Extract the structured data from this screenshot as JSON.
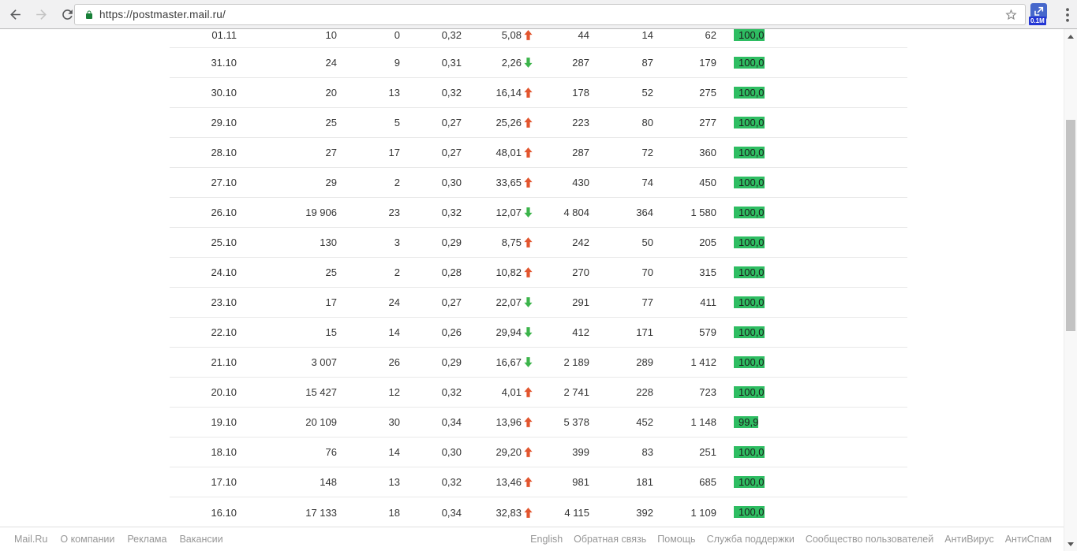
{
  "browser": {
    "url": "https://postmaster.mail.ru/",
    "extension_badge": "0.1M",
    "icons": [
      "back-icon",
      "forward-icon",
      "refresh-icon",
      "lock-icon",
      "star-icon",
      "extension-icon",
      "menu-icon"
    ]
  },
  "colors": {
    "bar_green": "#2ebd62",
    "arrow_up": "#e2552e",
    "arrow_down": "#3cb44b",
    "lock_green": "#188038"
  },
  "table": {
    "rows": [
      {
        "date": "01.11",
        "v1": "10",
        "v2": "0",
        "v3": "0,32",
        "trend": "5,08",
        "dir": "up",
        "v4": "44",
        "v5": "14",
        "v6": "62",
        "rate": "100,0"
      },
      {
        "date": "31.10",
        "v1": "24",
        "v2": "9",
        "v3": "0,31",
        "trend": "2,26",
        "dir": "down",
        "v4": "287",
        "v5": "87",
        "v6": "179",
        "rate": "100,0"
      },
      {
        "date": "30.10",
        "v1": "20",
        "v2": "13",
        "v3": "0,32",
        "trend": "16,14",
        "dir": "up",
        "v4": "178",
        "v5": "52",
        "v6": "275",
        "rate": "100,0"
      },
      {
        "date": "29.10",
        "v1": "25",
        "v2": "5",
        "v3": "0,27",
        "trend": "25,26",
        "dir": "up",
        "v4": "223",
        "v5": "80",
        "v6": "277",
        "rate": "100,0"
      },
      {
        "date": "28.10",
        "v1": "27",
        "v2": "17",
        "v3": "0,27",
        "trend": "48,01",
        "dir": "up",
        "v4": "287",
        "v5": "72",
        "v6": "360",
        "rate": "100,0"
      },
      {
        "date": "27.10",
        "v1": "29",
        "v2": "2",
        "v3": "0,30",
        "trend": "33,65",
        "dir": "up",
        "v4": "430",
        "v5": "74",
        "v6": "450",
        "rate": "100,0"
      },
      {
        "date": "26.10",
        "v1": "19 906",
        "v2": "23",
        "v3": "0,32",
        "trend": "12,07",
        "dir": "down",
        "v4": "4 804",
        "v5": "364",
        "v6": "1 580",
        "rate": "100,0"
      },
      {
        "date": "25.10",
        "v1": "130",
        "v2": "3",
        "v3": "0,29",
        "trend": "8,75",
        "dir": "up",
        "v4": "242",
        "v5": "50",
        "v6": "205",
        "rate": "100,0"
      },
      {
        "date": "24.10",
        "v1": "25",
        "v2": "2",
        "v3": "0,28",
        "trend": "10,82",
        "dir": "up",
        "v4": "270",
        "v5": "70",
        "v6": "315",
        "rate": "100,0"
      },
      {
        "date": "23.10",
        "v1": "17",
        "v2": "24",
        "v3": "0,27",
        "trend": "22,07",
        "dir": "down",
        "v4": "291",
        "v5": "77",
        "v6": "411",
        "rate": "100,0"
      },
      {
        "date": "22.10",
        "v1": "15",
        "v2": "14",
        "v3": "0,26",
        "trend": "29,94",
        "dir": "down",
        "v4": "412",
        "v5": "171",
        "v6": "579",
        "rate": "100,0"
      },
      {
        "date": "21.10",
        "v1": "3 007",
        "v2": "26",
        "v3": "0,29",
        "trend": "16,67",
        "dir": "down",
        "v4": "2 189",
        "v5": "289",
        "v6": "1 412",
        "rate": "100,0"
      },
      {
        "date": "20.10",
        "v1": "15 427",
        "v2": "12",
        "v3": "0,32",
        "trend": "4,01",
        "dir": "up",
        "v4": "2 741",
        "v5": "228",
        "v6": "723",
        "rate": "100,0"
      },
      {
        "date": "19.10",
        "v1": "20 109",
        "v2": "30",
        "v3": "0,34",
        "trend": "13,96",
        "dir": "up",
        "v4": "5 378",
        "v5": "452",
        "v6": "1 148",
        "rate": "99,9"
      },
      {
        "date": "18.10",
        "v1": "76",
        "v2": "14",
        "v3": "0,30",
        "trend": "29,20",
        "dir": "up",
        "v4": "399",
        "v5": "83",
        "v6": "251",
        "rate": "100,0"
      },
      {
        "date": "17.10",
        "v1": "148",
        "v2": "13",
        "v3": "0,32",
        "trend": "13,46",
        "dir": "up",
        "v4": "981",
        "v5": "181",
        "v6": "685",
        "rate": "100,0"
      },
      {
        "date": "16.10",
        "v1": "17 133",
        "v2": "18",
        "v3": "0,34",
        "trend": "32,83",
        "dir": "up",
        "v4": "4 115",
        "v5": "392",
        "v6": "1 109",
        "rate": "100,0"
      }
    ]
  },
  "footer": {
    "left": [
      "Mail.Ru",
      "О компании",
      "Реклама",
      "Вакансии"
    ],
    "right": [
      "English",
      "Обратная связь",
      "Помощь",
      "Служба поддержки",
      "Сообщество пользователей",
      "АнтиВирус",
      "АнтиСпам"
    ]
  }
}
